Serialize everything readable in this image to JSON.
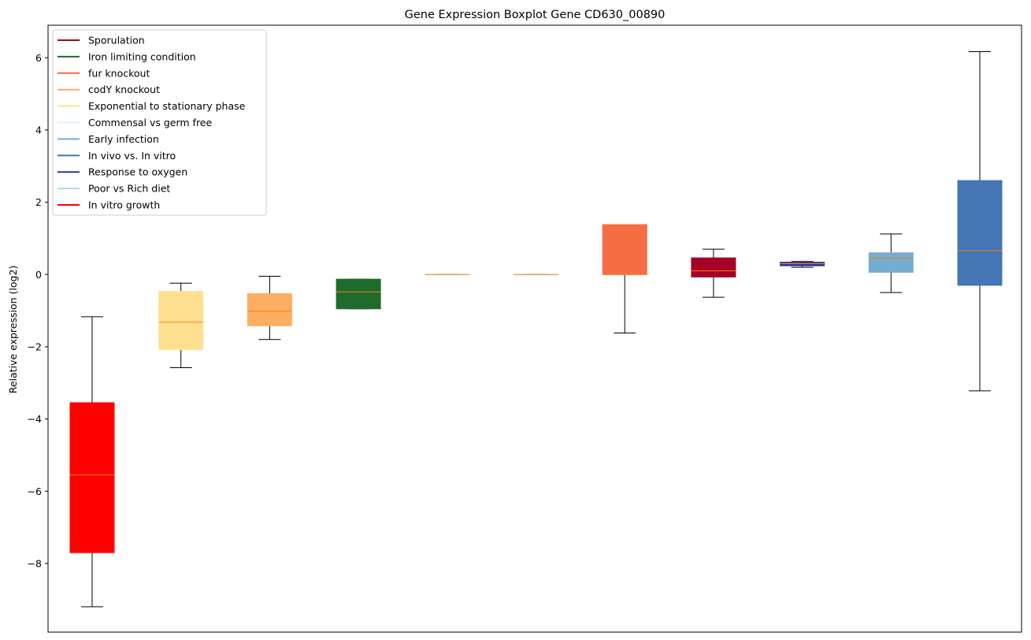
{
  "chart_data": {
    "type": "box",
    "title": "Gene Expression Boxplot Gene CD630_00890",
    "xlabel": "",
    "ylabel": "Relative expression (log2)",
    "ylim": [
      -9.9,
      6.9
    ],
    "yticks": [
      -8,
      -6,
      -4,
      -2,
      0,
      2,
      4,
      6
    ],
    "grid": false,
    "legend_position": "upper-left",
    "legend": [
      {
        "label": "Sporulation",
        "color": "#a50026"
      },
      {
        "label": "Iron limiting condition",
        "color": "#1f6a2d"
      },
      {
        "label": "fur knockout",
        "color": "#f46d43"
      },
      {
        "label": "codY knockout",
        "color": "#fdae61"
      },
      {
        "label": "Exponential to stationary phase",
        "color": "#fee090"
      },
      {
        "label": "Commensal vs germ free",
        "color": "#e0f3f8"
      },
      {
        "label": "Early infection",
        "color": "#74add1"
      },
      {
        "label": "In vivo vs. In vitro",
        "color": "#4575b4"
      },
      {
        "label": "Response to oxygen",
        "color": "#313695"
      },
      {
        "label": "Poor vs Rich diet",
        "color": "#abd9e9"
      },
      {
        "label": "In vitro growth",
        "color": "#ff0000"
      }
    ],
    "boxes": [
      {
        "condition": "In vitro growth",
        "color": "#ff0000",
        "whisker_low": -9.2,
        "q1": -7.7,
        "median": -5.55,
        "q3": -3.55,
        "whisker_high": -1.17
      },
      {
        "condition": "Exponential to stationary phase",
        "color": "#fee090",
        "whisker_low": -2.58,
        "q1": -2.08,
        "median": -1.32,
        "q3": -0.47,
        "whisker_high": -0.24
      },
      {
        "condition": "codY knockout",
        "color": "#fdae61",
        "whisker_low": -1.8,
        "q1": -1.42,
        "median": -1.02,
        "q3": -0.53,
        "whisker_high": -0.05
      },
      {
        "condition": "Iron limiting condition",
        "color": "#1f6a2d",
        "whisker_low": -0.95,
        "q1": -0.95,
        "median": -0.48,
        "q3": -0.13,
        "whisker_high": -0.13
      },
      {
        "condition": "Commensal vs germ free",
        "color": "#e0f3f8",
        "whisker_low": 0.0,
        "q1": 0.0,
        "median": 0.0,
        "q3": 0.0,
        "whisker_high": 0.0
      },
      {
        "condition": "Commensal vs germ free",
        "color": "#e0f3f8",
        "whisker_low": 0.0,
        "q1": 0.0,
        "median": 0.0,
        "q3": 0.0,
        "whisker_high": 0.0
      },
      {
        "condition": "fur knockout",
        "color": "#f46d43",
        "whisker_low": -1.62,
        "q1": 0.0,
        "median": 0.0,
        "q3": 1.38,
        "whisker_high": 1.38
      },
      {
        "condition": "Sporulation",
        "color": "#a50026",
        "whisker_low": -0.63,
        "q1": -0.07,
        "median": 0.1,
        "q3": 0.46,
        "whisker_high": 0.7
      },
      {
        "condition": "Response to oxygen",
        "color": "#313695",
        "whisker_low": 0.2,
        "q1": 0.24,
        "median": 0.3,
        "q3": 0.34,
        "whisker_high": 0.36
      },
      {
        "condition": "Early infection",
        "color": "#74add1",
        "whisker_low": -0.5,
        "q1": 0.06,
        "median": 0.45,
        "q3": 0.6,
        "whisker_high": 1.12
      },
      {
        "condition": "In vivo vs. In vitro",
        "color": "#4575b4",
        "whisker_low": -3.22,
        "q1": -0.3,
        "median": 0.66,
        "q3": 2.6,
        "whisker_high": 6.17
      }
    ]
  }
}
